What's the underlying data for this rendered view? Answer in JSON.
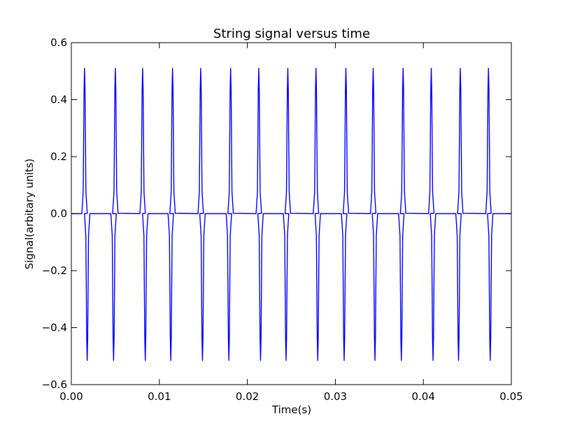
{
  "chart_data": {
    "type": "line",
    "title": "String signal versus time",
    "xlabel": "Time(s)",
    "ylabel": "Signal(arbitary units)",
    "xlim": [
      0,
      0.05
    ],
    "ylim": [
      -0.6,
      0.6
    ],
    "x_ticks": [
      0.0,
      0.01,
      0.02,
      0.03,
      0.04,
      0.05
    ],
    "x_tick_labels": [
      "0.00",
      "0.01",
      "0.02",
      "0.03",
      "0.04",
      "0.05"
    ],
    "y_ticks": [
      -0.6,
      -0.4,
      -0.2,
      0.0,
      0.2,
      0.4,
      0.6
    ],
    "y_tick_labels": [
      "−0.6",
      "−0.4",
      "−0.2",
      "0.0",
      "0.2",
      "0.4",
      "0.6"
    ],
    "grid": false,
    "series": [
      {
        "color": "#0000ff",
        "baseline": 0.0,
        "peak": 0.51,
        "trough": -0.515,
        "pos_peak_times": [
          0.0015,
          0.005,
          0.0081,
          0.0115,
          0.0147,
          0.0181,
          0.0213,
          0.0246,
          0.0278,
          0.0312,
          0.0343,
          0.0377,
          0.0409,
          0.0442,
          0.0474
        ],
        "neg_peak_times": [
          0.0018,
          0.0048,
          0.0084,
          0.0113,
          0.0149,
          0.0179,
          0.0215,
          0.0244,
          0.028,
          0.031,
          0.0345,
          0.0375,
          0.0411,
          0.044,
          0.0476
        ],
        "pos_plateau": 0.001,
        "neg_plateau": 0.0
      }
    ]
  }
}
